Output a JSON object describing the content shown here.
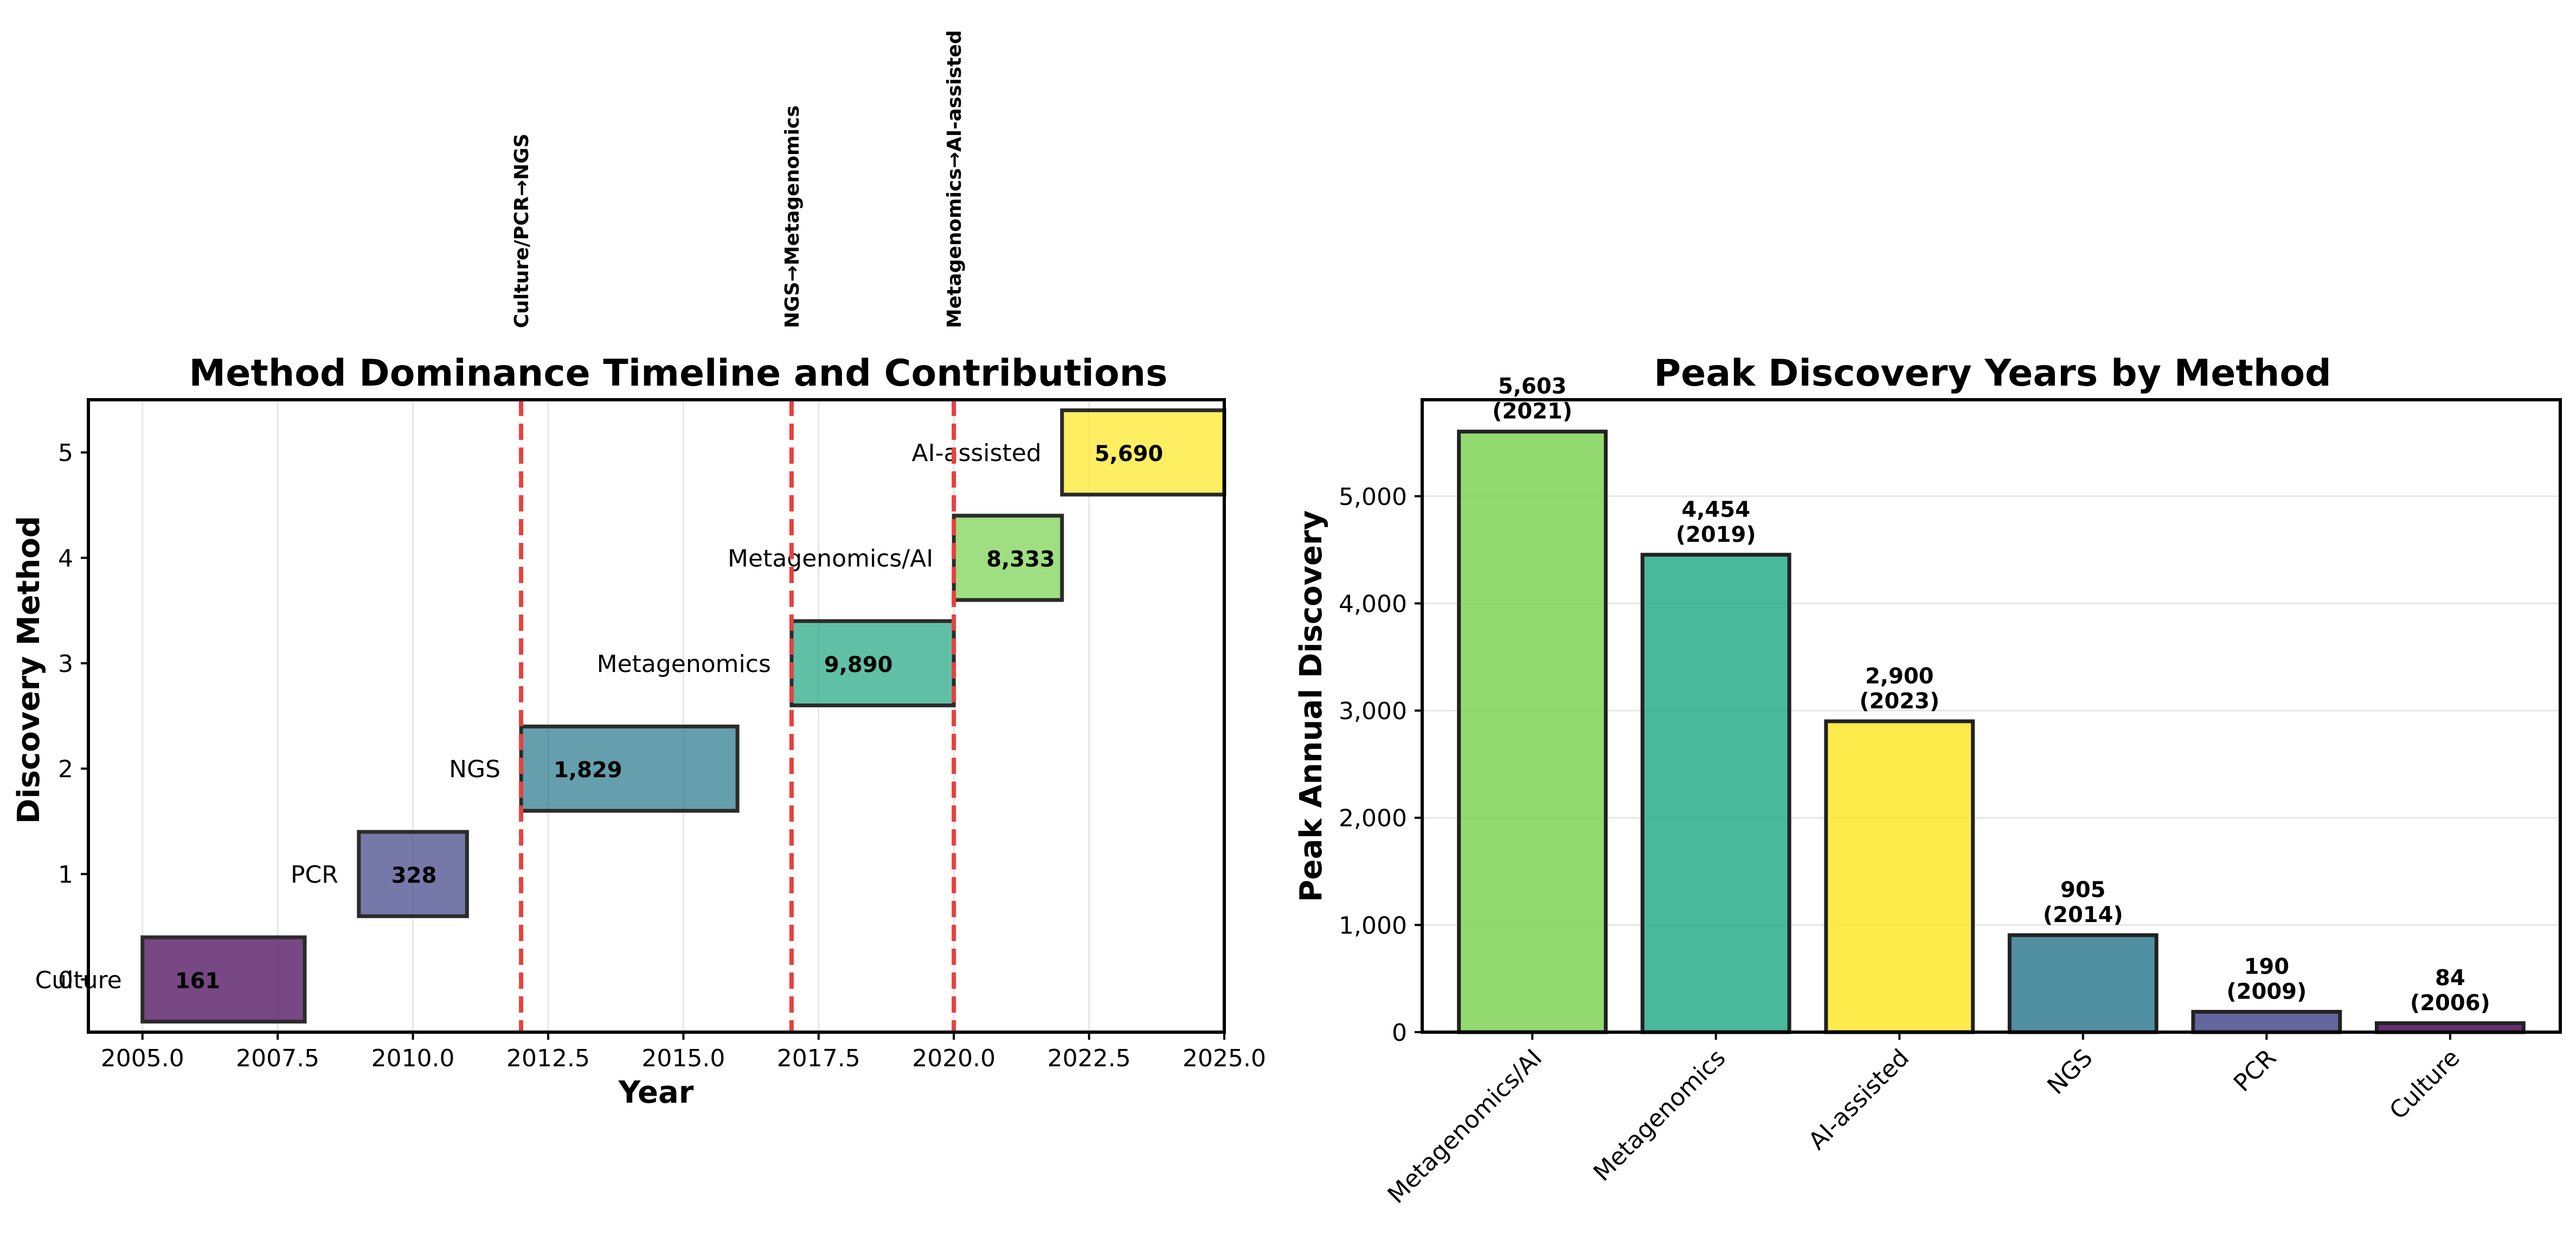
{
  "chart_data": [
    {
      "type": "bar",
      "orientation": "horizontal-timeline",
      "title": "Method Dominance Timeline and Contributions",
      "xlabel": "Year",
      "ylabel": "Discovery Method",
      "xlim": [
        2004,
        2025
      ],
      "ylim": [
        -0.5,
        5.5
      ],
      "xticks": [
        "2005.0",
        "2007.5",
        "2010.0",
        "2012.5",
        "2015.0",
        "2017.5",
        "2020.0",
        "2022.5",
        "2025.0"
      ],
      "yticks": [
        "0",
        "1",
        "2",
        "3",
        "4",
        "5"
      ],
      "grid": "x",
      "bars": [
        {
          "method": "Culture",
          "y": 0,
          "start": 2005,
          "end": 2008,
          "value_label": "161",
          "color": "#440154"
        },
        {
          "method": "PCR",
          "y": 1,
          "start": 2009,
          "end": 2011,
          "value_label": "328",
          "color": "#414487"
        },
        {
          "method": "NGS",
          "y": 2,
          "start": 2012,
          "end": 2016,
          "value_label": "1,829",
          "color": "#2a788e"
        },
        {
          "method": "Metagenomics",
          "y": 3,
          "start": 2017,
          "end": 2020,
          "value_label": "9,890",
          "color": "#22a884"
        },
        {
          "method": "Metagenomics/AI",
          "y": 4,
          "start": 2020,
          "end": 2022,
          "value_label": "8,333",
          "color": "#7ad151"
        },
        {
          "method": "AI-assisted",
          "y": 5,
          "start": 2022,
          "end": 2025,
          "value_label": "5,690",
          "color": "#fde725"
        }
      ],
      "transitions": [
        {
          "x": 2012,
          "label": "Culture/PCR→NGS"
        },
        {
          "x": 2017,
          "label": "NGS→Metagenomics"
        },
        {
          "x": 2020,
          "label": "Metagenomics→AI-assisted"
        }
      ],
      "transition_color": "#e8413c"
    },
    {
      "type": "bar",
      "title": "Peak Discovery Years by Method",
      "xlabel": "",
      "ylabel": "Peak Annual Discovery",
      "ylim": [
        0,
        5900
      ],
      "yticks": [
        0,
        1000,
        2000,
        3000,
        4000,
        5000
      ],
      "ytick_labels": [
        "0",
        "1,000",
        "2,000",
        "3,000",
        "4,000",
        "5,000"
      ],
      "grid": "y",
      "categories": [
        "Metagenomics/AI",
        "Metagenomics",
        "AI-assisted",
        "NGS",
        "PCR",
        "Culture"
      ],
      "values": [
        5603,
        4454,
        2900,
        905,
        190,
        84
      ],
      "value_labels": [
        "5,603",
        "4,454",
        "2,900",
        "905",
        "190",
        "84"
      ],
      "year_labels": [
        "(2021)",
        "(2019)",
        "(2023)",
        "(2014)",
        "(2009)",
        "(2006)"
      ],
      "colors": [
        "#7ad151",
        "#22a884",
        "#fde725",
        "#2a788e",
        "#414487",
        "#440154"
      ]
    }
  ]
}
